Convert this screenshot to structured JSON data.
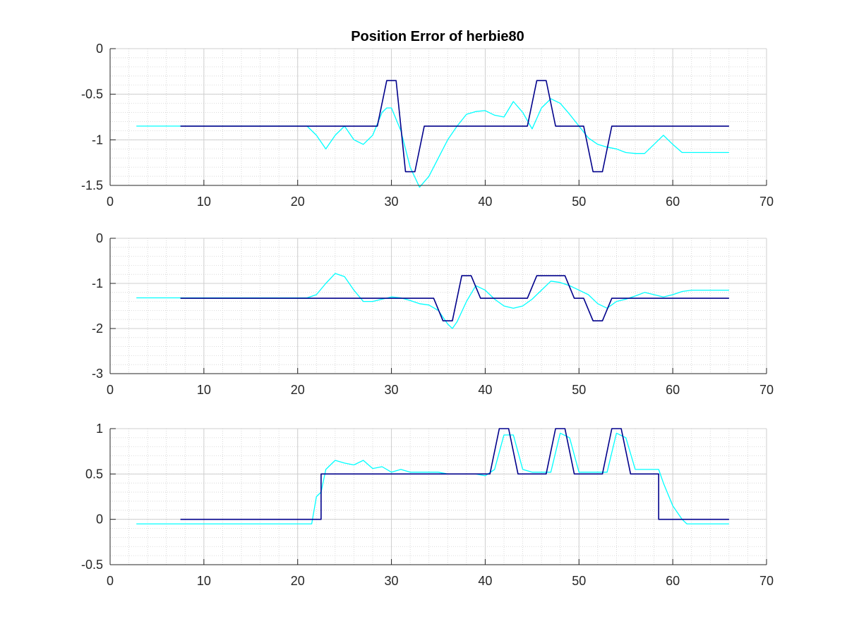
{
  "figure": {
    "title": "Position Error of herbie80"
  },
  "chart_data": [
    {
      "type": "line",
      "title": "Position Error of herbie80",
      "xlim": [
        0,
        70
      ],
      "ylim": [
        -1.5,
        0
      ],
      "xticks": [
        0,
        10,
        20,
        30,
        40,
        50,
        60,
        70
      ],
      "yticks": [
        -1.5,
        -1,
        -0.5,
        0
      ],
      "xtick_labels": [
        "0",
        "10",
        "20",
        "30",
        "40",
        "50",
        "60",
        "70"
      ],
      "ytick_labels": [
        "-1.5",
        "-1",
        "-0.5",
        "0"
      ],
      "grid": true,
      "minor_grid": true,
      "series": [
        {
          "color": "#00ffff",
          "x": [
            2.8,
            21,
            22,
            23,
            24,
            25,
            26,
            27,
            28,
            29,
            29.5,
            30,
            31,
            32,
            33,
            34,
            35,
            36,
            37,
            38,
            39,
            40,
            41,
            42,
            43,
            44,
            45,
            46,
            47,
            48,
            49,
            50,
            51,
            52,
            53,
            54,
            55,
            56,
            57,
            58,
            59,
            60,
            61,
            62,
            63,
            64,
            65,
            66
          ],
          "y": [
            -0.85,
            -0.85,
            -0.95,
            -1.1,
            -0.95,
            -0.85,
            -1.0,
            -1.05,
            -0.95,
            -0.7,
            -0.65,
            -0.65,
            -0.9,
            -1.3,
            -1.52,
            -1.4,
            -1.2,
            -1.0,
            -0.85,
            -0.72,
            -0.69,
            -0.68,
            -0.73,
            -0.75,
            -0.58,
            -0.7,
            -0.88,
            -0.65,
            -0.55,
            -0.6,
            -0.72,
            -0.85,
            -0.98,
            -1.05,
            -1.08,
            -1.1,
            -1.14,
            -1.15,
            -1.15,
            -1.05,
            -0.95,
            -1.05,
            -1.14,
            -1.14,
            -1.14,
            -1.14,
            -1.14,
            -1.14
          ]
        },
        {
          "color": "#00008b",
          "x": [
            7.5,
            28.5,
            29.5,
            30.5,
            31.5,
            32.5,
            33.5,
            44.5,
            45.5,
            46.5,
            47.5,
            50.5,
            51.5,
            52.5,
            53.5,
            66
          ],
          "y": [
            -0.85,
            -0.85,
            -0.35,
            -0.35,
            -1.35,
            -1.35,
            -0.85,
            -0.85,
            -0.35,
            -0.35,
            -0.85,
            -0.85,
            -1.35,
            -1.35,
            -0.85,
            -0.85
          ]
        }
      ]
    },
    {
      "type": "line",
      "xlim": [
        0,
        70
      ],
      "ylim": [
        -3,
        0
      ],
      "xticks": [
        0,
        10,
        20,
        30,
        40,
        50,
        60,
        70
      ],
      "yticks": [
        -3,
        -2,
        -1,
        0
      ],
      "xtick_labels": [
        "0",
        "10",
        "20",
        "30",
        "40",
        "50",
        "60",
        "70"
      ],
      "ytick_labels": [
        "-3",
        "-2",
        "-1",
        "0"
      ],
      "grid": true,
      "minor_grid": true,
      "series": [
        {
          "color": "#00ffff",
          "x": [
            2.8,
            21,
            22,
            23,
            24,
            25,
            26,
            27,
            28,
            29,
            30,
            31,
            32,
            33,
            34,
            35,
            36,
            36.5,
            37,
            38,
            39,
            40,
            41,
            42,
            43,
            44,
            45,
            46,
            47,
            48,
            49,
            50,
            51,
            52,
            53,
            54,
            55,
            56,
            57,
            58,
            59,
            60,
            61,
            62,
            63,
            64,
            65,
            66
          ],
          "y": [
            -1.32,
            -1.32,
            -1.25,
            -1.0,
            -0.78,
            -0.85,
            -1.15,
            -1.4,
            -1.4,
            -1.35,
            -1.3,
            -1.32,
            -1.38,
            -1.45,
            -1.48,
            -1.6,
            -1.9,
            -2.0,
            -1.85,
            -1.4,
            -1.05,
            -1.15,
            -1.35,
            -1.5,
            -1.55,
            -1.5,
            -1.35,
            -1.15,
            -0.95,
            -0.98,
            -1.05,
            -1.15,
            -1.25,
            -1.45,
            -1.55,
            -1.4,
            -1.35,
            -1.28,
            -1.2,
            -1.25,
            -1.3,
            -1.25,
            -1.18,
            -1.15,
            -1.15,
            -1.15,
            -1.15,
            -1.15
          ]
        },
        {
          "color": "#00008b",
          "x": [
            7.5,
            34.5,
            35.5,
            36.5,
            37.5,
            38.5,
            39.5,
            44.5,
            45.5,
            48.5,
            49.5,
            50.5,
            51.5,
            52.5,
            53.5,
            66
          ],
          "y": [
            -1.33,
            -1.33,
            -1.83,
            -1.83,
            -0.83,
            -0.83,
            -1.33,
            -1.33,
            -0.83,
            -0.83,
            -1.33,
            -1.33,
            -1.83,
            -1.83,
            -1.33,
            -1.33
          ]
        }
      ]
    },
    {
      "type": "line",
      "xlim": [
        0,
        70
      ],
      "ylim": [
        -0.5,
        1
      ],
      "xticks": [
        0,
        10,
        20,
        30,
        40,
        50,
        60,
        70
      ],
      "yticks": [
        -0.5,
        0,
        0.5,
        1
      ],
      "xtick_labels": [
        "0",
        "10",
        "20",
        "30",
        "40",
        "50",
        "60",
        "70"
      ],
      "ytick_labels": [
        "-0.5",
        "0",
        "0.5",
        "1"
      ],
      "grid": true,
      "minor_grid": true,
      "series": [
        {
          "color": "#00ffff",
          "x": [
            2.8,
            21.5,
            22,
            22.5,
            23,
            24,
            25,
            26,
            27,
            28,
            29,
            30,
            31,
            32,
            33,
            34,
            35,
            36,
            37,
            38,
            39,
            40,
            41,
            42,
            43,
            44,
            45,
            46,
            47,
            48,
            49,
            50,
            51,
            52,
            53,
            54,
            55,
            56,
            57,
            58,
            58.5,
            59,
            60,
            61,
            61.5,
            62,
            63,
            64,
            65,
            66
          ],
          "y": [
            -0.05,
            -0.05,
            0.25,
            0.3,
            0.55,
            0.65,
            0.62,
            0.6,
            0.65,
            0.56,
            0.58,
            0.52,
            0.55,
            0.52,
            0.52,
            0.52,
            0.52,
            0.5,
            0.5,
            0.5,
            0.5,
            0.48,
            0.55,
            0.93,
            0.93,
            0.55,
            0.52,
            0.52,
            0.52,
            0.95,
            0.9,
            0.52,
            0.52,
            0.52,
            0.52,
            0.95,
            0.9,
            0.55,
            0.55,
            0.55,
            0.55,
            0.4,
            0.15,
            0.0,
            -0.05,
            -0.05,
            -0.05,
            -0.05,
            -0.05,
            -0.05
          ]
        },
        {
          "color": "#00008b",
          "x": [
            7.5,
            22.5,
            22.5,
            40.5,
            41.5,
            42.5,
            43.5,
            46.5,
            47.5,
            48.5,
            49.5,
            52.5,
            53.5,
            54.5,
            55.5,
            58.5,
            58.5,
            66
          ],
          "y": [
            0,
            0,
            0.5,
            0.5,
            1.0,
            1.0,
            0.5,
            0.5,
            1.0,
            1.0,
            0.5,
            0.5,
            1.0,
            1.0,
            0.5,
            0.5,
            0,
            0
          ]
        }
      ]
    }
  ]
}
